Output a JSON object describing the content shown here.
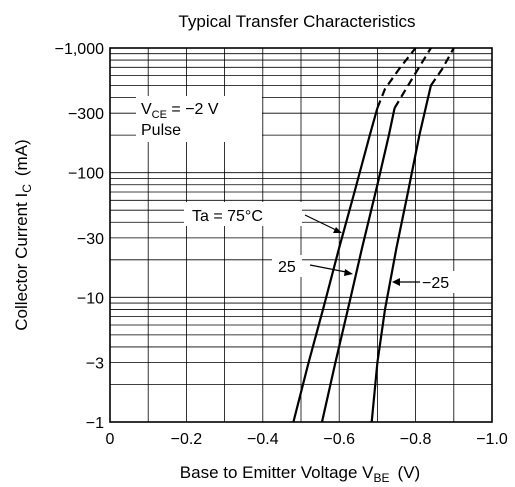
{
  "chart_data": {
    "type": "line",
    "title": "Typical Transfer Characteristics",
    "xlabel": "Base to Emitter Voltage  V",
    "xlabel_sub": "BE",
    "xlabel_unit": "(V)",
    "ylabel": "Collector Current  I",
    "ylabel_sub": "C",
    "ylabel_unit": "(mA)",
    "x_scale": "linear",
    "y_scale": "log",
    "xlim": [
      0,
      -1.0
    ],
    "ylim": [
      -1,
      -1000
    ],
    "x_ticks": [
      {
        "value": 0,
        "label": "0"
      },
      {
        "value": -0.2,
        "label": "−0.2"
      },
      {
        "value": -0.4,
        "label": "−0.4"
      },
      {
        "value": -0.6,
        "label": "−0.6"
      },
      {
        "value": -0.8,
        "label": "−0.8"
      },
      {
        "value": -1.0,
        "label": "−1.0"
      }
    ],
    "y_ticks": [
      {
        "value": -1,
        "label": "−1"
      },
      {
        "value": -3,
        "label": "−3"
      },
      {
        "value": -10,
        "label": "−10"
      },
      {
        "value": -30,
        "label": "−30"
      },
      {
        "value": -100,
        "label": "−100"
      },
      {
        "value": -300,
        "label": "−300"
      },
      {
        "value": -1000,
        "label": "−1,000"
      }
    ],
    "grid": true,
    "conditions": {
      "vce_prefix": "V",
      "vce_sub": "CE",
      "vce_value": " = −2 V",
      "mode": "Pulse"
    },
    "series": [
      {
        "name": "Ta = 75°C",
        "x": [
          -0.48,
          -0.52,
          -0.56,
          -0.6,
          -0.64,
          -0.68,
          -0.7,
          -0.72,
          -0.76,
          -0.8
        ],
        "y": [
          -1,
          -3,
          -8.5,
          -25,
          -70,
          -200,
          -330,
          -470,
          -700,
          -1000
        ],
        "dashed_from_index": 6
      },
      {
        "name": "25",
        "x": [
          -0.555,
          -0.59,
          -0.63,
          -0.66,
          -0.7,
          -0.73,
          -0.745,
          -0.8,
          -0.84
        ],
        "y": [
          -1,
          -3,
          -10,
          -25,
          -80,
          -200,
          -330,
          -630,
          -1000
        ],
        "dashed_from_index": 6
      },
      {
        "name": "−25",
        "x": [
          -0.685,
          -0.7,
          -0.72,
          -0.75,
          -0.78,
          -0.81,
          -0.84,
          -0.87,
          -0.9
        ],
        "y": [
          -1,
          -3,
          -8,
          -25,
          -70,
          -200,
          -500,
          -680,
          -1000
        ],
        "dashed_from_index": 6
      }
    ],
    "annotations": [
      {
        "text": "Ta = 75°C",
        "series": 0
      },
      {
        "text": "25",
        "series": 1
      },
      {
        "text": "−25",
        "series": 2
      }
    ]
  }
}
